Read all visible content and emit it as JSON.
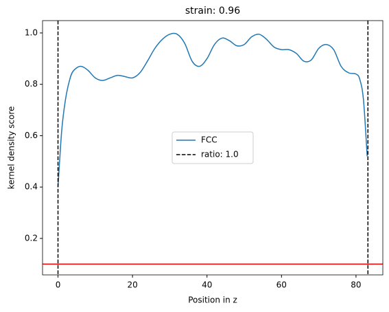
{
  "chart_data": {
    "type": "line",
    "title": "strain: 0.96",
    "xlabel": "Position in z",
    "ylabel": "kernel density score",
    "x": [
      0,
      1,
      2,
      3,
      4,
      6,
      8,
      10,
      12,
      14,
      16,
      18,
      20,
      22,
      24,
      26,
      28,
      30,
      32,
      34,
      36,
      38,
      40,
      42,
      44,
      46,
      48,
      50,
      52,
      54,
      56,
      58,
      60,
      62,
      64,
      66,
      68,
      70,
      72,
      74,
      76,
      78,
      80,
      81,
      82,
      83
    ],
    "series": [
      {
        "name": "FCC",
        "color": "#1f77b4",
        "values": [
          0.4,
          0.62,
          0.74,
          0.81,
          0.85,
          0.87,
          0.855,
          0.825,
          0.815,
          0.825,
          0.835,
          0.83,
          0.825,
          0.845,
          0.89,
          0.94,
          0.975,
          0.995,
          0.995,
          0.96,
          0.89,
          0.87,
          0.9,
          0.955,
          0.98,
          0.97,
          0.95,
          0.955,
          0.985,
          0.995,
          0.975,
          0.945,
          0.935,
          0.935,
          0.92,
          0.89,
          0.895,
          0.94,
          0.955,
          0.935,
          0.87,
          0.845,
          0.84,
          0.82,
          0.74,
          0.52
        ]
      }
    ],
    "vlines": {
      "name": "ratio: 1.0",
      "color": "#000000",
      "values": [
        0,
        83.2
      ]
    },
    "hlines": {
      "color": "#ff0000",
      "values": [
        0.1
      ]
    },
    "xlim": [
      -4.15,
      87.2
    ],
    "ylim": [
      0.058,
      1.048
    ],
    "xticks": [
      0,
      20,
      40,
      60,
      80
    ],
    "yticks": [
      0.2,
      0.4,
      0.6,
      0.8,
      {
        "value": 1,
        "label": "1.0"
      }
    ],
    "legend": "center"
  }
}
